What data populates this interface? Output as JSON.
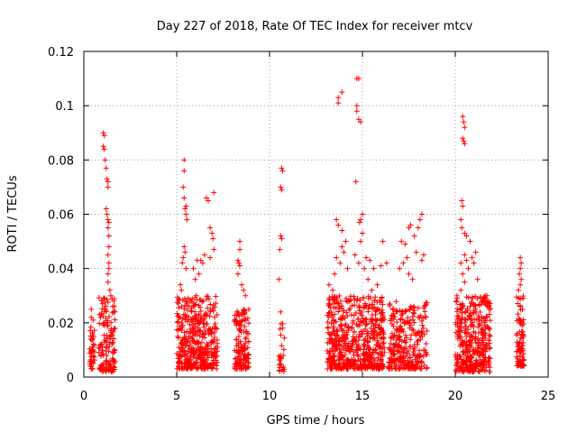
{
  "chart_data": {
    "type": "scatter",
    "title": "Day 227 of 2018, Rate Of TEC Index for receiver mtcv",
    "xlabel": "GPS time / hours",
    "ylabel": "ROTI / TECUs",
    "xlim": [
      0,
      25
    ],
    "ylim": [
      0,
      0.12
    ],
    "xticks": [
      0,
      5,
      10,
      15,
      20,
      25
    ],
    "xtick_labels": [
      "0",
      "5",
      "10",
      "15",
      "20",
      "25"
    ],
    "yticks": [
      0,
      0.02,
      0.04,
      0.06,
      0.08,
      0.1,
      0.12
    ],
    "ytick_labels": [
      "0",
      "0.02",
      "0.04",
      "0.06",
      "0.08",
      "0.1",
      "0.12"
    ],
    "grid": true,
    "marker": "+",
    "series": [
      {
        "name": "ROTI",
        "color": "#ff0000",
        "clusters": [
          {
            "x_range": [
              0.3,
              0.6
            ],
            "y_range": [
              0.003,
              0.02
            ],
            "n": 40
          },
          {
            "x_range": [
              0.8,
              1.7
            ],
            "y_range": [
              0.002,
              0.03
            ],
            "n": 140
          },
          {
            "x_range": [
              5.0,
              7.2
            ],
            "y_range": [
              0.003,
              0.03
            ],
            "n": 420
          },
          {
            "x_range": [
              8.1,
              8.9
            ],
            "y_range": [
              0.003,
              0.025
            ],
            "n": 140
          },
          {
            "x_range": [
              10.5,
              10.8
            ],
            "y_range": [
              0.002,
              0.02
            ],
            "n": 30
          },
          {
            "x_range": [
              13.1,
              16.2
            ],
            "y_range": [
              0.003,
              0.03
            ],
            "n": 600
          },
          {
            "x_range": [
              16.4,
              18.5
            ],
            "y_range": [
              0.003,
              0.028
            ],
            "n": 300
          },
          {
            "x_range": [
              20.0,
              21.9
            ],
            "y_range": [
              0.002,
              0.03
            ],
            "n": 380
          },
          {
            "x_range": [
              23.3,
              23.7
            ],
            "y_range": [
              0.004,
              0.03
            ],
            "n": 90
          }
        ],
        "points": [
          [
            0.4,
            0.025
          ],
          [
            0.4,
            0.022
          ],
          [
            0.5,
            0.021
          ],
          [
            1.05,
            0.09
          ],
          [
            1.1,
            0.089
          ],
          [
            1.05,
            0.085
          ],
          [
            1.1,
            0.084
          ],
          [
            1.15,
            0.08
          ],
          [
            1.2,
            0.077
          ],
          [
            1.25,
            0.073
          ],
          [
            1.3,
            0.072
          ],
          [
            1.3,
            0.07
          ],
          [
            1.2,
            0.062
          ],
          [
            1.25,
            0.06
          ],
          [
            1.3,
            0.058
          ],
          [
            1.35,
            0.057
          ],
          [
            1.3,
            0.055
          ],
          [
            1.35,
            0.052
          ],
          [
            1.35,
            0.048
          ],
          [
            1.3,
            0.045
          ],
          [
            1.35,
            0.042
          ],
          [
            1.35,
            0.04
          ],
          [
            1.3,
            0.038
          ],
          [
            1.3,
            0.035
          ],
          [
            1.4,
            0.032
          ],
          [
            1.45,
            0.03
          ],
          [
            1.0,
            0.027
          ],
          [
            1.1,
            0.024
          ],
          [
            0.9,
            0.022
          ],
          [
            5.4,
            0.08
          ],
          [
            5.4,
            0.076
          ],
          [
            5.35,
            0.07
          ],
          [
            5.4,
            0.066
          ],
          [
            5.5,
            0.063
          ],
          [
            5.45,
            0.062
          ],
          [
            5.5,
            0.06
          ],
          [
            5.55,
            0.058
          ],
          [
            5.4,
            0.048
          ],
          [
            5.45,
            0.046
          ],
          [
            5.35,
            0.044
          ],
          [
            5.3,
            0.042
          ],
          [
            5.5,
            0.04
          ],
          [
            5.2,
            0.034
          ],
          [
            5.25,
            0.032
          ],
          [
            6.6,
            0.066
          ],
          [
            6.7,
            0.065
          ],
          [
            7.0,
            0.068
          ],
          [
            6.8,
            0.055
          ],
          [
            6.9,
            0.053
          ],
          [
            6.95,
            0.051
          ],
          [
            7.0,
            0.047
          ],
          [
            6.5,
            0.045
          ],
          [
            6.3,
            0.043
          ],
          [
            6.1,
            0.043
          ],
          [
            6.4,
            0.042
          ],
          [
            6.8,
            0.044
          ],
          [
            5.9,
            0.04
          ],
          [
            6.0,
            0.036
          ],
          [
            6.2,
            0.038
          ],
          [
            8.4,
            0.05
          ],
          [
            8.4,
            0.047
          ],
          [
            8.3,
            0.043
          ],
          [
            8.35,
            0.042
          ],
          [
            8.4,
            0.041
          ],
          [
            8.3,
            0.038
          ],
          [
            8.5,
            0.034
          ],
          [
            8.6,
            0.032
          ],
          [
            8.7,
            0.03
          ],
          [
            10.65,
            0.077
          ],
          [
            10.7,
            0.076
          ],
          [
            10.6,
            0.07
          ],
          [
            10.65,
            0.069
          ],
          [
            10.6,
            0.052
          ],
          [
            10.65,
            0.051
          ],
          [
            10.55,
            0.047
          ],
          [
            10.5,
            0.036
          ],
          [
            10.6,
            0.024
          ],
          [
            13.7,
            0.103
          ],
          [
            13.7,
            0.101
          ],
          [
            13.9,
            0.105
          ],
          [
            13.6,
            0.058
          ],
          [
            13.7,
            0.056
          ],
          [
            13.9,
            0.054
          ],
          [
            14.1,
            0.05
          ],
          [
            13.9,
            0.048
          ],
          [
            14.0,
            0.046
          ],
          [
            13.6,
            0.044
          ],
          [
            13.8,
            0.042
          ],
          [
            14.2,
            0.04
          ],
          [
            13.5,
            0.038
          ],
          [
            13.2,
            0.034
          ],
          [
            13.4,
            0.032
          ],
          [
            14.7,
            0.11
          ],
          [
            14.8,
            0.11
          ],
          [
            14.7,
            0.1
          ],
          [
            14.7,
            0.098
          ],
          [
            14.8,
            0.095
          ],
          [
            14.9,
            0.094
          ],
          [
            14.65,
            0.072
          ],
          [
            15.0,
            0.06
          ],
          [
            14.9,
            0.058
          ],
          [
            14.85,
            0.057
          ],
          [
            15.0,
            0.053
          ],
          [
            14.9,
            0.05
          ],
          [
            14.6,
            0.045
          ],
          [
            15.2,
            0.044
          ],
          [
            14.8,
            0.042
          ],
          [
            15.4,
            0.043
          ],
          [
            15.1,
            0.04
          ],
          [
            15.6,
            0.04
          ],
          [
            15.3,
            0.036
          ],
          [
            15.8,
            0.034
          ],
          [
            15.5,
            0.032
          ],
          [
            16.1,
            0.05
          ],
          [
            16.3,
            0.042
          ],
          [
            16.0,
            0.041
          ],
          [
            17.1,
            0.05
          ],
          [
            17.3,
            0.049
          ],
          [
            17.5,
            0.055
          ],
          [
            17.6,
            0.056
          ],
          [
            17.8,
            0.052
          ],
          [
            18.0,
            0.055
          ],
          [
            18.2,
            0.06
          ],
          [
            18.1,
            0.058
          ],
          [
            18.3,
            0.045
          ],
          [
            18.2,
            0.043
          ],
          [
            17.9,
            0.046
          ],
          [
            17.4,
            0.044
          ],
          [
            17.2,
            0.042
          ],
          [
            17.0,
            0.04
          ],
          [
            17.5,
            0.038
          ],
          [
            17.7,
            0.036
          ],
          [
            20.4,
            0.096
          ],
          [
            20.45,
            0.094
          ],
          [
            20.5,
            0.092
          ],
          [
            20.4,
            0.088
          ],
          [
            20.45,
            0.087
          ],
          [
            20.5,
            0.086
          ],
          [
            20.35,
            0.065
          ],
          [
            20.4,
            0.063
          ],
          [
            20.3,
            0.058
          ],
          [
            20.35,
            0.055
          ],
          [
            20.5,
            0.053
          ],
          [
            20.6,
            0.052
          ],
          [
            20.8,
            0.05
          ],
          [
            20.5,
            0.045
          ],
          [
            20.6,
            0.043
          ],
          [
            20.3,
            0.042
          ],
          [
            20.7,
            0.04
          ],
          [
            20.4,
            0.038
          ],
          [
            20.5,
            0.035
          ],
          [
            20.3,
            0.032
          ],
          [
            21.1,
            0.046
          ],
          [
            20.9,
            0.044
          ],
          [
            21.0,
            0.042
          ],
          [
            21.2,
            0.036
          ],
          [
            21.7,
            0.03
          ],
          [
            21.5,
            0.028
          ],
          [
            23.5,
            0.044
          ],
          [
            23.55,
            0.042
          ],
          [
            23.5,
            0.04
          ],
          [
            23.45,
            0.038
          ],
          [
            23.55,
            0.036
          ],
          [
            23.5,
            0.034
          ],
          [
            23.4,
            0.032
          ]
        ]
      }
    ]
  }
}
